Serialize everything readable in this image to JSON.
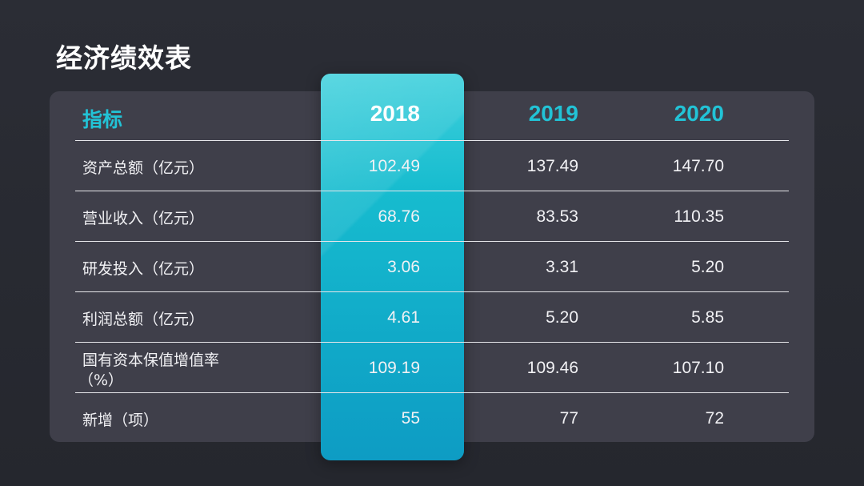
{
  "slide": {
    "title": "经济绩效表"
  },
  "table": {
    "header": {
      "label": "指标",
      "years": [
        "2018",
        "2019",
        "2020"
      ]
    },
    "rows": [
      {
        "label": "资产总额（亿元）",
        "label2": "",
        "values": [
          "102.49",
          "137.49",
          "147.70"
        ]
      },
      {
        "label": "营业收入（亿元）",
        "label2": "",
        "values": [
          "68.76",
          "83.53",
          "110.35"
        ]
      },
      {
        "label": "研发投入（亿元）",
        "label2": "",
        "values": [
          "3.06",
          "3.31",
          "5.20"
        ]
      },
      {
        "label": "利润总额（亿元）",
        "label2": "",
        "values": [
          "4.61",
          "5.20",
          "5.85"
        ]
      },
      {
        "label": "国有资本保值增值率",
        "label2": "（%）",
        "values": [
          "109.19",
          "109.46",
          "107.10"
        ]
      },
      {
        "label": "新增（项）",
        "label2": "",
        "values": [
          "55",
          "77",
          "72"
        ]
      }
    ]
  },
  "colors": {
    "accent": "#22c3d6",
    "panel": "#3f3f4a",
    "background": "#2b2d35",
    "highlight_top": "#3fd0dc",
    "highlight_bottom": "#0e9cc4"
  }
}
